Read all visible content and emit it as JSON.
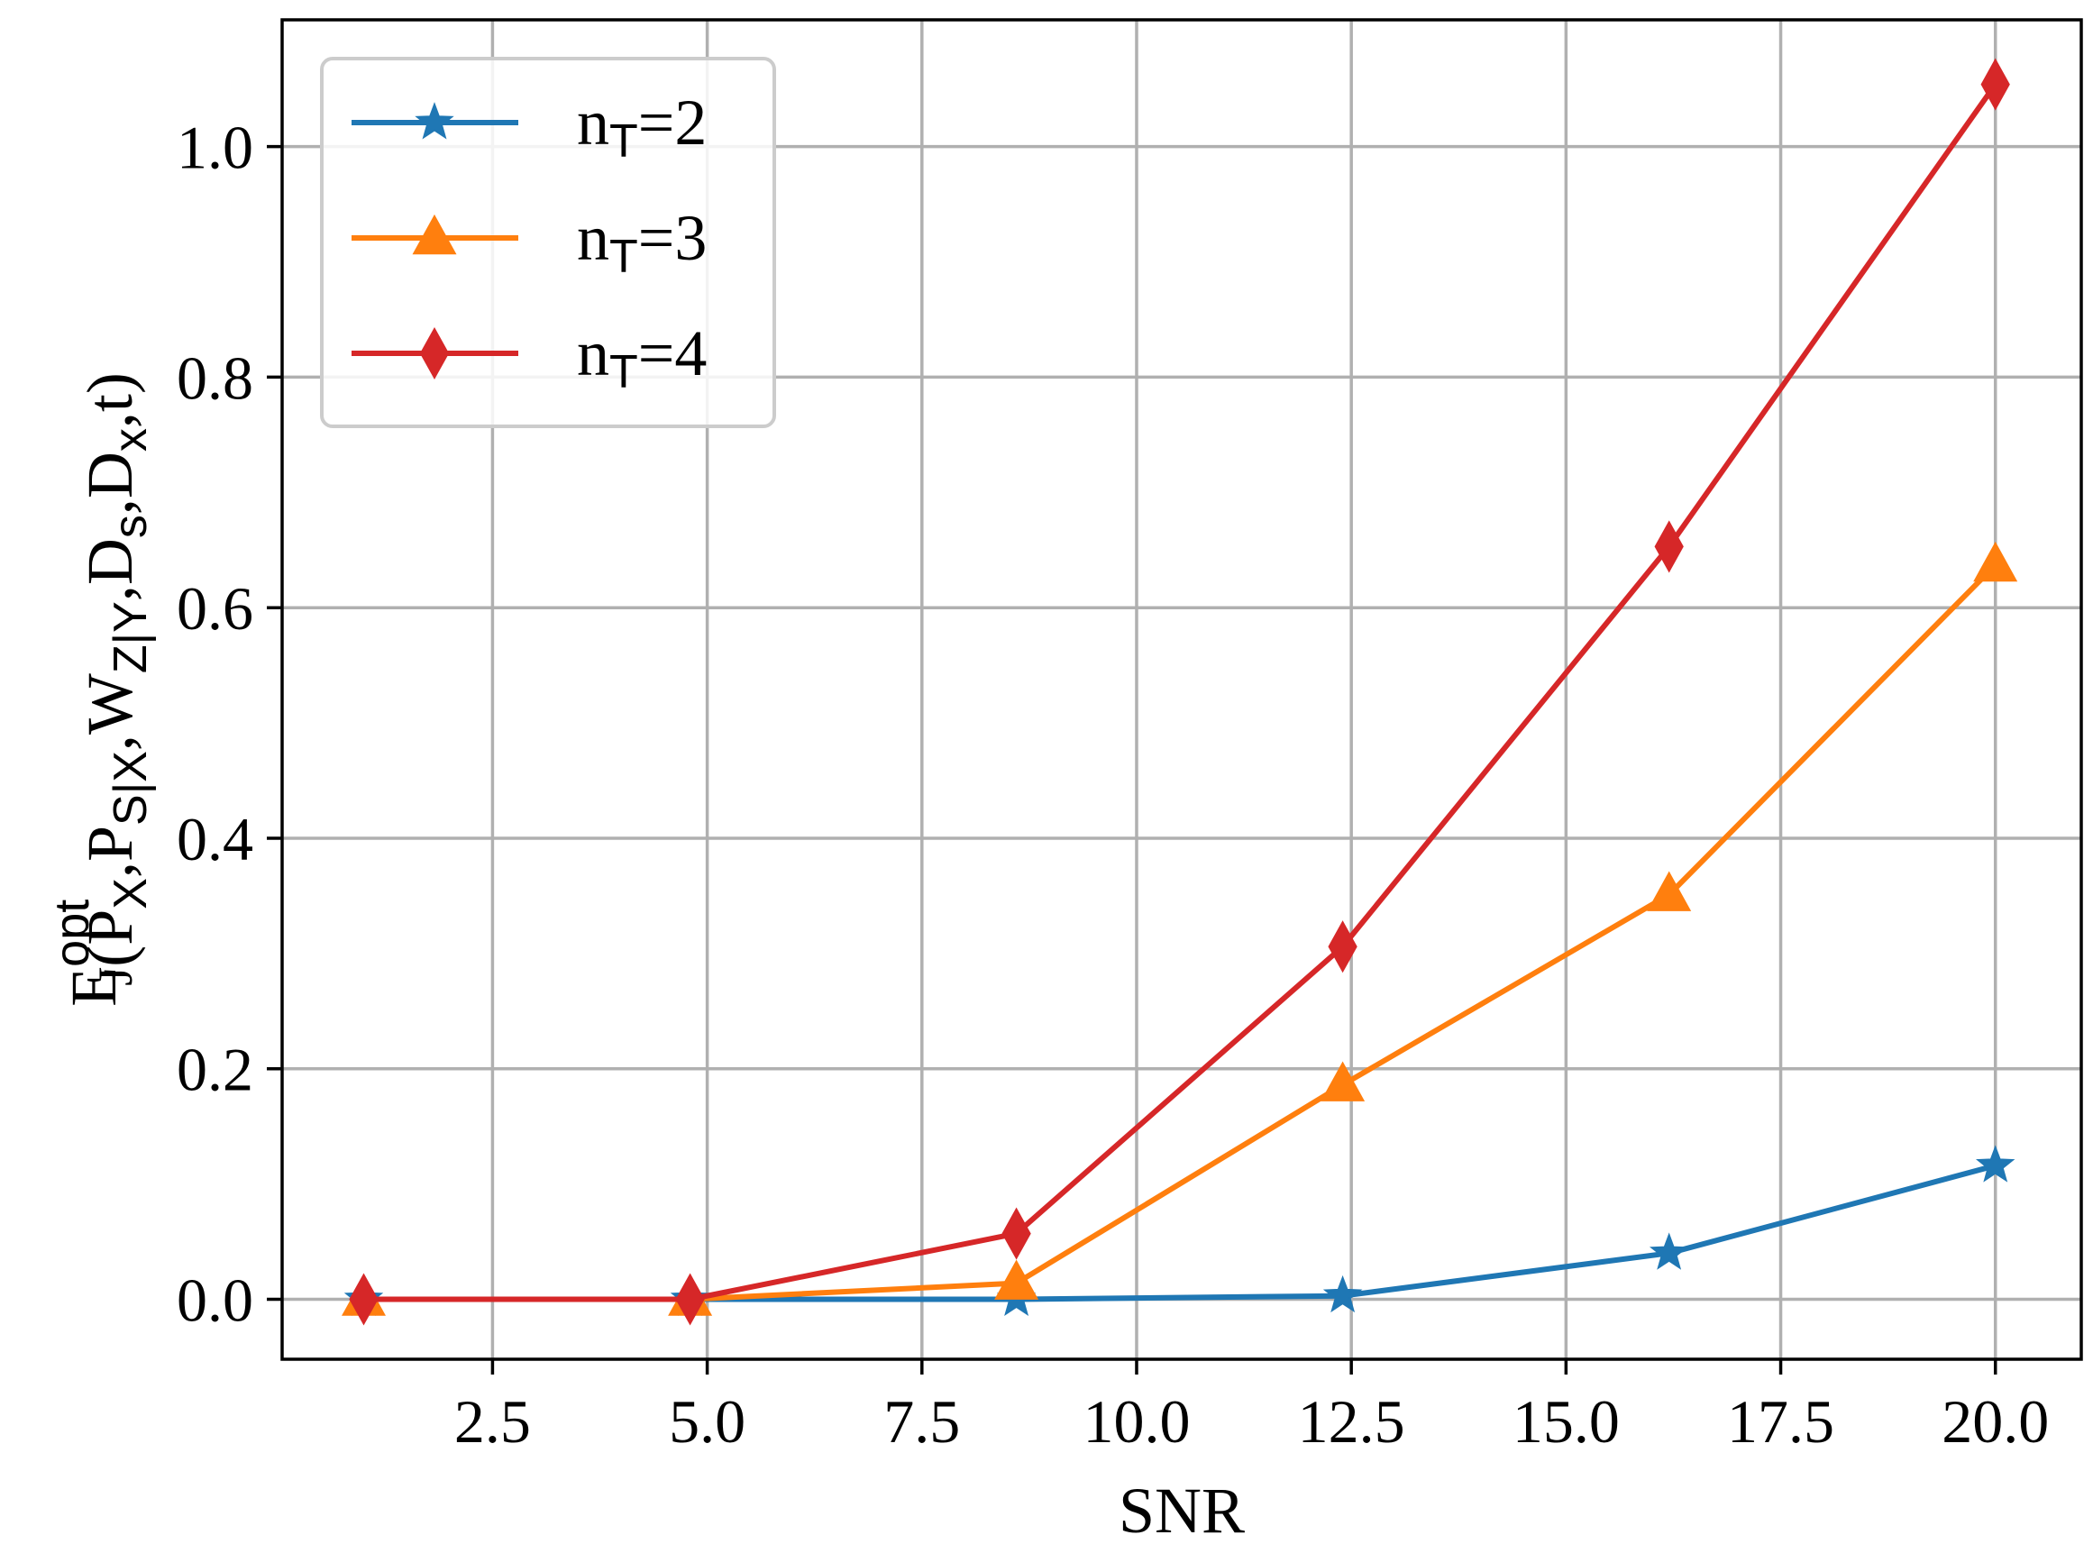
{
  "chart_data": {
    "type": "line",
    "xlabel": "SNR",
    "ylabel": {
      "base": "E",
      "base_sub": "J",
      "base_sup": "opt",
      "args": "(P_X,P_S|X,W_Z|Y,D_s,D_x,t)",
      "parts": [
        {
          "t": "(P",
          "s": ""
        },
        {
          "t": "X",
          "s": "sub"
        },
        {
          "t": ",P",
          "s": ""
        },
        {
          "t": "S|X",
          "s": "sub"
        },
        {
          "t": ",W",
          "s": ""
        },
        {
          "t": "Z|Y",
          "s": "sub"
        },
        {
          "t": ",D",
          "s": ""
        },
        {
          "t": "s",
          "s": "sub"
        },
        {
          "t": ",D",
          "s": ""
        },
        {
          "t": "x",
          "s": "sub"
        },
        {
          "t": ",t)",
          "s": ""
        }
      ]
    },
    "xlim": [
      0.05,
      21.0
    ],
    "ylim": [
      -0.052,
      1.11
    ],
    "x_ticks": [
      2.5,
      5.0,
      7.5,
      10.0,
      12.5,
      15.0,
      17.5,
      20.0
    ],
    "x_tick_labels": [
      "2.5",
      "5.0",
      "7.5",
      "10.0",
      "12.5",
      "15.0",
      "17.5",
      "20.0"
    ],
    "y_ticks": [
      0.0,
      0.2,
      0.4,
      0.6,
      0.8,
      1.0
    ],
    "y_tick_labels": [
      "0.0",
      "0.2",
      "0.4",
      "0.6",
      "0.8",
      "1.0"
    ],
    "grid": true,
    "legend_position": "top-left",
    "x": [
      1.0,
      4.8,
      8.6,
      12.4,
      16.2,
      20.0
    ],
    "series": [
      {
        "name_base": "n",
        "name_sub": "T",
        "name_rest": "=2",
        "color": "#1f77b4",
        "marker": "star",
        "values": [
          0.0,
          0.0,
          0.0,
          0.003,
          0.04,
          0.116
        ]
      },
      {
        "name_base": "n",
        "name_sub": "T",
        "name_rest": "=3",
        "color": "#ff7f0e",
        "marker": "triangle",
        "values": [
          0.0,
          0.0,
          0.014,
          0.186,
          0.351,
          0.637
        ]
      },
      {
        "name_base": "n",
        "name_sub": "T",
        "name_rest": "=4",
        "color": "#d62728",
        "marker": "diamond",
        "values": [
          0.0,
          0.0,
          0.057,
          0.306,
          0.653,
          1.054
        ]
      }
    ]
  }
}
